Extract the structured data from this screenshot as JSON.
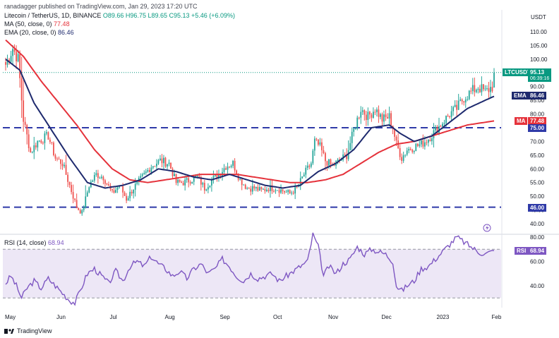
{
  "header": {
    "author_line": "ranadagger published on TradingView.com, Jan 29, 2023 17:20 UTC",
    "symbol_line": "Litecoin / TetherUS, 1D, BINANCE",
    "ohlc": "O89.66 H96.75 L89.65 C95.13 +5.46 (+6.09%)",
    "ma_label": "MA (50, close, 0)",
    "ma_value": "77.48",
    "ema_label": "EMA (20, close, 0)",
    "ema_value": "86.46",
    "rsi_label": "RSI (14, close)",
    "rsi_value": "68.94"
  },
  "footer": {
    "brand": "TradingView"
  },
  "colors": {
    "up": "#26a69a",
    "down": "#ef5350",
    "ema": "#1e2a6e",
    "ma": "#e5323b",
    "level": "#2f3aa8",
    "rsi": "#7e57c2",
    "rsi_band": "#ede7f6",
    "price_tag": "#089981"
  },
  "chart_data": [
    {
      "type": "candlestick",
      "currency": "USDT",
      "x_labels": [
        "May",
        "Jun",
        "Jul",
        "Aug",
        "Sep",
        "Oct",
        "Nov",
        "Dec",
        "2023",
        "Feb"
      ],
      "y_ticks": [
        "110.00",
        "105.00",
        "100.00",
        "95.00",
        "90.00",
        "85.00",
        "80.00",
        "75.00",
        "70.00",
        "65.00",
        "60.00",
        "55.00",
        "50.00",
        "45.00",
        "40.00"
      ],
      "ylim": [
        38,
        118
      ],
      "horizontal_levels": [
        75.0,
        46.0
      ],
      "price_labels": {
        "symbol": "LTCUSDT",
        "last": "95.13",
        "countdown": "06:39:16",
        "ema_tag": "EMA",
        "ema": "86.46",
        "ma_tag": "MA",
        "ma": "77.48",
        "level_high": "75.00",
        "level_low": "46.00"
      },
      "series": [
        {
          "name": "Litecoin / TetherUS",
          "anchors_close": [
            [
              0,
              98
            ],
            [
              4,
              104
            ],
            [
              7,
              100
            ],
            [
              10,
              78
            ],
            [
              14,
              66
            ],
            [
              18,
              70
            ],
            [
              24,
              72
            ],
            [
              28,
              64
            ],
            [
              32,
              62
            ],
            [
              36,
              54
            ],
            [
              40,
              46
            ],
            [
              43,
              44
            ],
            [
              47,
              54
            ],
            [
              51,
              58
            ],
            [
              55,
              57
            ],
            [
              60,
              51
            ],
            [
              64,
              54
            ],
            [
              68,
              49
            ],
            [
              72,
              53
            ],
            [
              77,
              57
            ],
            [
              82,
              61
            ],
            [
              87,
              63
            ],
            [
              92,
              62
            ],
            [
              96,
              55
            ],
            [
              100,
              55
            ],
            [
              104,
              56
            ],
            [
              108,
              57
            ],
            [
              112,
              53
            ],
            [
              116,
              56
            ],
            [
              120,
              58
            ],
            [
              124,
              61
            ],
            [
              128,
              62
            ],
            [
              132,
              56
            ],
            [
              136,
              53
            ],
            [
              140,
              53
            ],
            [
              144,
              52
            ],
            [
              148,
              53
            ],
            [
              152,
              53
            ],
            [
              156,
              52
            ],
            [
              160,
              51
            ],
            [
              164,
              53
            ],
            [
              168,
              58
            ],
            [
              172,
              62
            ],
            [
              174,
              70
            ],
            [
              177,
              68
            ],
            [
              180,
              63
            ],
            [
              184,
              61
            ],
            [
              188,
              63
            ],
            [
              192,
              65
            ],
            [
              196,
              74
            ],
            [
              200,
              82
            ],
            [
              204,
              79
            ],
            [
              208,
              82
            ],
            [
              212,
              78
            ],
            [
              216,
              79
            ],
            [
              218,
              75
            ],
            [
              220,
              69
            ],
            [
              223,
              64
            ],
            [
              226,
              67
            ],
            [
              230,
              68
            ],
            [
              234,
              69
            ],
            [
              238,
              71
            ],
            [
              242,
              74
            ],
            [
              246,
              77
            ],
            [
              250,
              80
            ],
            [
              254,
              82
            ],
            [
              258,
              86
            ],
            [
              262,
              88
            ],
            [
              266,
              90
            ],
            [
              270,
              88
            ],
            [
              274,
              90
            ],
            [
              275,
              95.13
            ]
          ]
        },
        {
          "name": "EMA",
          "anchors": [
            [
              0,
              100
            ],
            [
              8,
              96
            ],
            [
              16,
              84
            ],
            [
              26,
              74
            ],
            [
              36,
              64
            ],
            [
              46,
              55
            ],
            [
              56,
              53
            ],
            [
              66,
              54
            ],
            [
              76,
              56
            ],
            [
              86,
              60
            ],
            [
              96,
              59
            ],
            [
              106,
              57
            ],
            [
              116,
              56
            ],
            [
              126,
              58
            ],
            [
              136,
              56
            ],
            [
              146,
              54
            ],
            [
              156,
              53
            ],
            [
              166,
              54
            ],
            [
              176,
              59
            ],
            [
              186,
              62
            ],
            [
              196,
              67
            ],
            [
              206,
              75
            ],
            [
              216,
              76
            ],
            [
              222,
              73
            ],
            [
              230,
              70
            ],
            [
              240,
              72
            ],
            [
              250,
              77
            ],
            [
              260,
              82
            ],
            [
              270,
              85
            ],
            [
              275,
              86.46
            ]
          ]
        },
        {
          "name": "MA",
          "anchors": [
            [
              0,
              107
            ],
            [
              10,
              101
            ],
            [
              20,
              92
            ],
            [
              30,
              84
            ],
            [
              40,
              76
            ],
            [
              50,
              67
            ],
            [
              60,
              60
            ],
            [
              70,
              56
            ],
            [
              80,
              55
            ],
            [
              90,
              56
            ],
            [
              100,
              57
            ],
            [
              110,
              58
            ],
            [
              120,
              58
            ],
            [
              130,
              58
            ],
            [
              140,
              57
            ],
            [
              150,
              56
            ],
            [
              160,
              55
            ],
            [
              170,
              55
            ],
            [
              180,
              56
            ],
            [
              190,
              58
            ],
            [
              200,
              62
            ],
            [
              210,
              66
            ],
            [
              220,
              69
            ],
            [
              230,
              70
            ],
            [
              240,
              72
            ],
            [
              250,
              74
            ],
            [
              260,
              76
            ],
            [
              275,
              77.48
            ]
          ]
        }
      ]
    },
    {
      "type": "line",
      "title": "RSI (14, close)",
      "y_ticks": [
        "80.00",
        "60.00",
        "40.00"
      ],
      "ylim": [
        20,
        85
      ],
      "band": [
        30,
        70
      ],
      "last_label": "RSI",
      "last_value": "68.94",
      "series": [
        {
          "name": "RSI",
          "anchors": [
            [
              0,
              42
            ],
            [
              3,
              48
            ],
            [
              6,
              40
            ],
            [
              9,
              30
            ],
            [
              12,
              38
            ],
            [
              16,
              44
            ],
            [
              20,
              38
            ],
            [
              24,
              46
            ],
            [
              28,
              40
            ],
            [
              32,
              34
            ],
            [
              36,
              28
            ],
            [
              39,
              26
            ],
            [
              42,
              36
            ],
            [
              46,
              50
            ],
            [
              50,
              54
            ],
            [
              54,
              48
            ],
            [
              58,
              42
            ],
            [
              62,
              52
            ],
            [
              66,
              44
            ],
            [
              70,
              56
            ],
            [
              74,
              60
            ],
            [
              78,
              56
            ],
            [
              82,
              64
            ],
            [
              86,
              58
            ],
            [
              90,
              54
            ],
            [
              94,
              48
            ],
            [
              98,
              52
            ],
            [
              102,
              46
            ],
            [
              106,
              54
            ],
            [
              110,
              58
            ],
            [
              114,
              50
            ],
            [
              118,
              54
            ],
            [
              122,
              62
            ],
            [
              126,
              56
            ],
            [
              130,
              48
            ],
            [
              134,
              44
            ],
            [
              138,
              50
            ],
            [
              142,
              46
            ],
            [
              146,
              48
            ],
            [
              150,
              50
            ],
            [
              154,
              44
            ],
            [
              158,
              48
            ],
            [
              162,
              52
            ],
            [
              166,
              56
            ],
            [
              170,
              60
            ],
            [
              173,
              82
            ],
            [
              176,
              72
            ],
            [
              179,
              48
            ],
            [
              182,
              56
            ],
            [
              186,
              50
            ],
            [
              190,
              58
            ],
            [
              194,
              62
            ],
            [
              198,
              72
            ],
            [
              202,
              66
            ],
            [
              206,
              70
            ],
            [
              210,
              68
            ],
            [
              214,
              66
            ],
            [
              218,
              60
            ],
            [
              220,
              40
            ],
            [
              223,
              36
            ],
            [
              226,
              40
            ],
            [
              230,
              44
            ],
            [
              234,
              54
            ],
            [
              238,
              56
            ],
            [
              242,
              62
            ],
            [
              246,
              68
            ],
            [
              250,
              74
            ],
            [
              254,
              80
            ],
            [
              258,
              76
            ],
            [
              262,
              72
            ],
            [
              266,
              68
            ],
            [
              270,
              66
            ],
            [
              275,
              68.94
            ]
          ]
        }
      ]
    }
  ]
}
